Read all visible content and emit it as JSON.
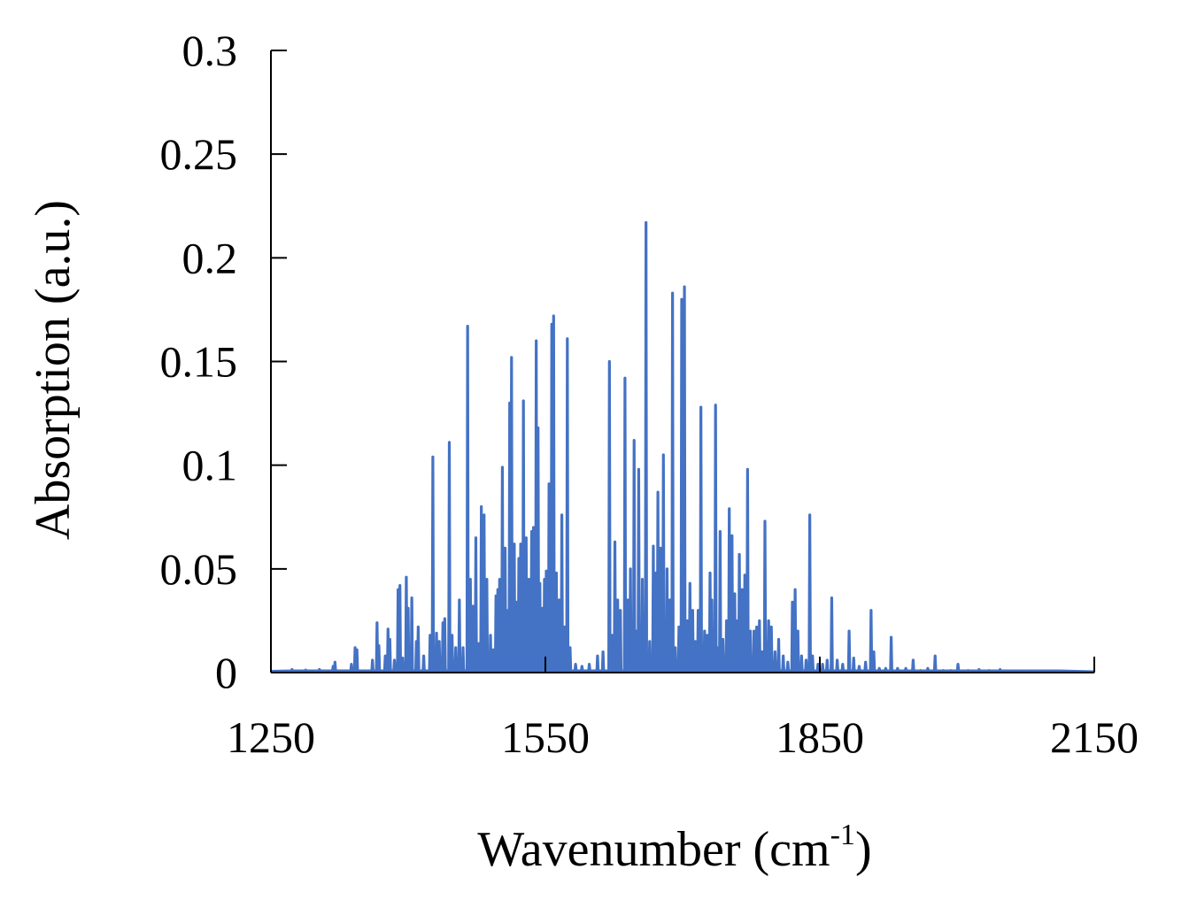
{
  "chart_data": {
    "type": "line",
    "xlabel": "Wavenumber (cm",
    "xlabel_superscript": "-1",
    "xlabel_suffix": ")",
    "ylabel": "Absorption (a.u.)",
    "xlim": [
      1250,
      2150
    ],
    "ylim": [
      0,
      0.3
    ],
    "xticks": [
      1250,
      1550,
      1850,
      2150
    ],
    "xtick_labels": [
      "1250",
      "1550",
      "1850",
      "2150"
    ],
    "yticks": [
      0,
      0.05,
      0.1,
      0.15,
      0.2,
      0.25,
      0.3
    ],
    "ytick_labels": [
      "0",
      "0.05",
      "0.1",
      "0.15",
      "0.2",
      "0.25",
      "0.3"
    ],
    "grid": false,
    "legend": "none",
    "series_color": "#4472C4",
    "series": [
      {
        "peaks": [
          [
            1273,
            0.0015
          ],
          [
            1288,
            0.0012
          ],
          [
            1303,
            0.0015
          ],
          [
            1318,
            0.003
          ],
          [
            1320,
            0.005
          ],
          [
            1338,
            0.004
          ],
          [
            1342,
            0.012
          ],
          [
            1344,
            0.011
          ],
          [
            1361,
            0.006
          ],
          [
            1366,
            0.024
          ],
          [
            1368,
            0.013
          ],
          [
            1375,
            0.008
          ],
          [
            1378,
            0.021
          ],
          [
            1380,
            0.016
          ],
          [
            1385,
            0.006
          ],
          [
            1389,
            0.04
          ],
          [
            1391,
            0.042
          ],
          [
            1394,
            0.007
          ],
          [
            1398,
            0.046
          ],
          [
            1400,
            0.031
          ],
          [
            1404,
            0.036
          ],
          [
            1409,
            0.015
          ],
          [
            1411,
            0.022
          ],
          [
            1417,
            0.008
          ],
          [
            1424,
            0.018
          ],
          [
            1427,
            0.104
          ],
          [
            1431,
            0.019
          ],
          [
            1434,
            0.015
          ],
          [
            1438,
            0.024
          ],
          [
            1440,
            0.026
          ],
          [
            1445,
            0.111
          ],
          [
            1448,
            0.018
          ],
          [
            1452,
            0.012
          ],
          [
            1456,
            0.035
          ],
          [
            1460,
            0.012
          ],
          [
            1465,
            0.167
          ],
          [
            1468,
            0.045
          ],
          [
            1471,
            0.032
          ],
          [
            1474,
            0.065
          ],
          [
            1477,
            0.014
          ],
          [
            1480,
            0.08
          ],
          [
            1483,
            0.076
          ],
          [
            1486,
            0.045
          ],
          [
            1490,
            0.018
          ],
          [
            1493,
            0.011
          ],
          [
            1496,
            0.037
          ],
          [
            1498,
            0.04
          ],
          [
            1500,
            0.045
          ],
          [
            1503,
            0.099
          ],
          [
            1506,
            0.06
          ],
          [
            1509,
            0.03
          ],
          [
            1511,
            0.13
          ],
          [
            1513,
            0.152
          ],
          [
            1516,
            0.062
          ],
          [
            1519,
            0.034
          ],
          [
            1521,
            0.055
          ],
          [
            1523,
            0.062
          ],
          [
            1526,
            0.131
          ],
          [
            1529,
            0.065
          ],
          [
            1532,
            0.045
          ],
          [
            1535,
            0.068
          ],
          [
            1537,
            0.07
          ],
          [
            1540,
            0.16
          ],
          [
            1542,
            0.118
          ],
          [
            1544,
            0.043
          ],
          [
            1547,
            0.031
          ],
          [
            1549,
            0.045
          ],
          [
            1551,
            0.049
          ],
          [
            1554,
            0.091
          ],
          [
            1557,
            0.168
          ],
          [
            1559,
            0.172
          ],
          [
            1562,
            0.048
          ],
          [
            1565,
            0.035
          ],
          [
            1568,
            0.076
          ],
          [
            1571,
            0.022
          ],
          [
            1574,
            0.161
          ],
          [
            1577,
            0.012
          ],
          [
            1583,
            0.004
          ],
          [
            1590,
            0.003
          ],
          [
            1598,
            0.004
          ],
          [
            1607,
            0.008
          ],
          [
            1613,
            0.01
          ],
          [
            1620,
            0.15
          ],
          [
            1623,
            0.018
          ],
          [
            1626,
            0.063
          ],
          [
            1629,
            0.035
          ],
          [
            1632,
            0.03
          ],
          [
            1637,
            0.142
          ],
          [
            1640,
            0.035
          ],
          [
            1643,
            0.05
          ],
          [
            1647,
            0.112
          ],
          [
            1650,
            0.02
          ],
          [
            1652,
            0.098
          ],
          [
            1656,
            0.045
          ],
          [
            1660,
            0.217
          ],
          [
            1664,
            0.015
          ],
          [
            1668,
            0.061
          ],
          [
            1671,
            0.048
          ],
          [
            1673,
            0.087
          ],
          [
            1676,
            0.06
          ],
          [
            1679,
            0.105
          ],
          [
            1683,
            0.05
          ],
          [
            1686,
            0.035
          ],
          [
            1689,
            0.183
          ],
          [
            1692,
            0.012
          ],
          [
            1696,
            0.022
          ],
          [
            1699,
            0.18
          ],
          [
            1702,
            0.186
          ],
          [
            1705,
            0.025
          ],
          [
            1708,
            0.043
          ],
          [
            1711,
            0.03
          ],
          [
            1714,
            0.015
          ],
          [
            1717,
            0.03
          ],
          [
            1720,
            0.128
          ],
          [
            1724,
            0.02
          ],
          [
            1727,
            0.018
          ],
          [
            1730,
            0.048
          ],
          [
            1732,
            0.035
          ],
          [
            1736,
            0.129
          ],
          [
            1739,
            0.012
          ],
          [
            1741,
            0.068
          ],
          [
            1744,
            0.016
          ],
          [
            1748,
            0.025
          ],
          [
            1751,
            0.079
          ],
          [
            1754,
            0.066
          ],
          [
            1757,
            0.038
          ],
          [
            1760,
            0.025
          ],
          [
            1762,
            0.057
          ],
          [
            1765,
            0.04
          ],
          [
            1768,
            0.047
          ],
          [
            1771,
            0.098
          ],
          [
            1774,
            0.02
          ],
          [
            1778,
            0.02
          ],
          [
            1781,
            0.022
          ],
          [
            1784,
            0.025
          ],
          [
            1787,
            0.01
          ],
          [
            1790,
            0.073
          ],
          [
            1794,
            0.025
          ],
          [
            1797,
            0.022
          ],
          [
            1801,
            0.01
          ],
          [
            1805,
            0.016
          ],
          [
            1810,
            0.008
          ],
          [
            1815,
            0.005
          ],
          [
            1820,
            0.034
          ],
          [
            1823,
            0.04
          ],
          [
            1826,
            0.02
          ],
          [
            1830,
            0.008
          ],
          [
            1835,
            0.006
          ],
          [
            1839,
            0.076
          ],
          [
            1842,
            0.008
          ],
          [
            1848,
            0.004
          ],
          [
            1853,
            0.004
          ],
          [
            1858,
            0.006
          ],
          [
            1863,
            0.036
          ],
          [
            1869,
            0.006
          ],
          [
            1875,
            0.004
          ],
          [
            1882,
            0.02
          ],
          [
            1887,
            0.007
          ],
          [
            1893,
            0.003
          ],
          [
            1900,
            0.005
          ],
          [
            1906,
            0.03
          ],
          [
            1909,
            0.01
          ],
          [
            1915,
            0.002
          ],
          [
            1922,
            0.002
          ],
          [
            1928,
            0.017
          ],
          [
            1935,
            0.002
          ],
          [
            1944,
            0.002
          ],
          [
            1952,
            0.006
          ],
          [
            1960,
            0.001
          ],
          [
            1968,
            0.002
          ],
          [
            1976,
            0.008
          ],
          [
            1985,
            0.001
          ],
          [
            1993,
            0.001
          ],
          [
            2001,
            0.004
          ],
          [
            2012,
            0.001
          ],
          [
            2024,
            0.0015
          ],
          [
            2035,
            0.001
          ],
          [
            2047,
            0.0015
          ],
          [
            2060,
            0.0008
          ],
          [
            2075,
            0.0006
          ],
          [
            2090,
            0.0005
          ],
          [
            2110,
            0.0004
          ]
        ]
      }
    ]
  }
}
